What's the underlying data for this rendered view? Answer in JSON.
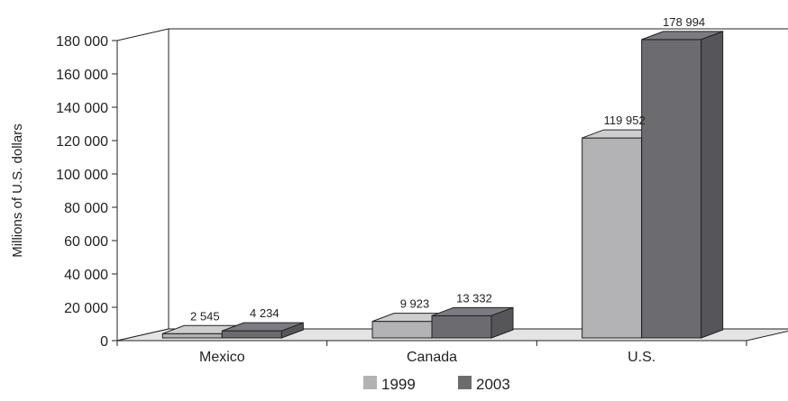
{
  "chart_data": {
    "type": "bar",
    "categories": [
      "Mexico",
      "Canada",
      "U.S."
    ],
    "series": [
      {
        "name": "1999",
        "values": [
          2545,
          9923,
          119952
        ],
        "labels": [
          "2 545",
          "9 923",
          "119 952"
        ],
        "color": "#b3b3b5"
      },
      {
        "name": "2003",
        "values": [
          4234,
          13332,
          178994
        ],
        "labels": [
          "4 234",
          "13 332",
          "178 994"
        ],
        "color": "#6b6b70"
      }
    ],
    "ylabel": "Millions of U.S. dollars",
    "xlabel": "",
    "title": "",
    "ylim": [
      0,
      180000
    ],
    "yticks": [
      0,
      20000,
      40000,
      60000,
      80000,
      100000,
      120000,
      140000,
      160000,
      180000
    ],
    "ytick_labels": [
      "0",
      "20 000",
      "40 000",
      "60 000",
      "80 000",
      "100 000",
      "120 000",
      "140 000",
      "160 000",
      "180 000"
    ],
    "grid": false,
    "legend_position": "bottom-center",
    "style": "3d-clustered"
  }
}
